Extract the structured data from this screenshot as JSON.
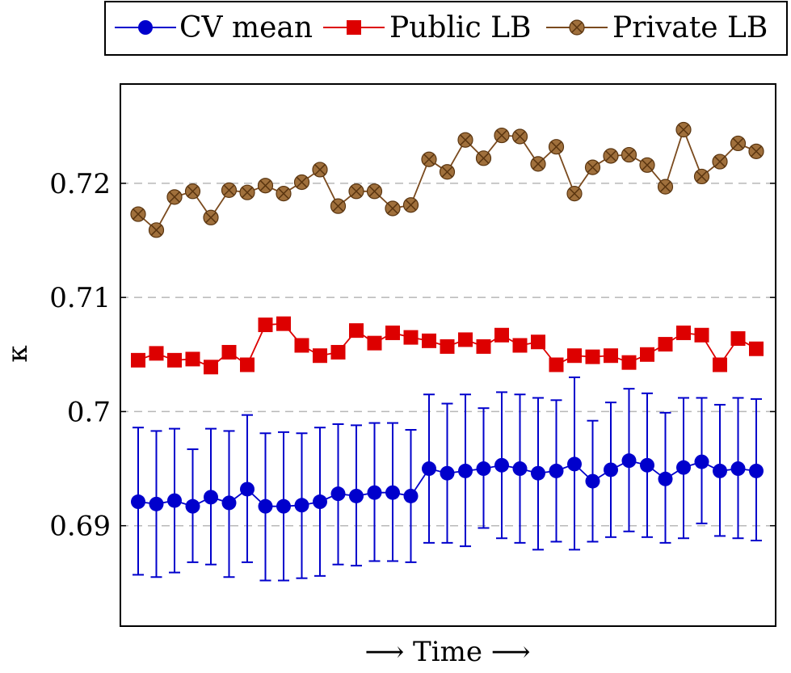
{
  "chart_data": {
    "type": "line",
    "xlabel": "⟶ Time ⟶",
    "ylabel": "κ",
    "ylim": [
      0.6812,
      0.7287
    ],
    "yticks": [
      0.69,
      0.7,
      0.71,
      0.72
    ],
    "ytick_labels": [
      "0.69",
      "0.7",
      "0.71",
      "0.72"
    ],
    "grid": "horizontal dashed",
    "legend_position": "top",
    "x": [
      1,
      2,
      3,
      4,
      5,
      6,
      7,
      8,
      9,
      10,
      11,
      12,
      13,
      14,
      15,
      16,
      17,
      18,
      19,
      20,
      21,
      22,
      23,
      24,
      25,
      26,
      27,
      28,
      29,
      30,
      31,
      32,
      33,
      34,
      35
    ],
    "series": [
      {
        "name": "CV mean",
        "color": "#0000cc",
        "marker": "circle",
        "values": [
          0.6921,
          0.6919,
          0.6922,
          0.6917,
          0.6925,
          0.692,
          0.6932,
          0.6917,
          0.6917,
          0.6918,
          0.6921,
          0.6928,
          0.6926,
          0.6929,
          0.6929,
          0.6926,
          0.695,
          0.6946,
          0.6948,
          0.695,
          0.6953,
          0.695,
          0.6946,
          0.6948,
          0.6954,
          0.6939,
          0.6949,
          0.6957,
          0.6953,
          0.6941,
          0.6951,
          0.6956,
          0.6948,
          0.695,
          0.6948
        ],
        "err_low": [
          0.6857,
          0.6855,
          0.6859,
          0.6868,
          0.6866,
          0.6855,
          0.6868,
          0.6852,
          0.6852,
          0.6854,
          0.6856,
          0.6866,
          0.6865,
          0.6869,
          0.6869,
          0.6868,
          0.6885,
          0.6885,
          0.6882,
          0.6898,
          0.6889,
          0.6885,
          0.6879,
          0.6886,
          0.6879,
          0.6886,
          0.689,
          0.6895,
          0.689,
          0.6885,
          0.6889,
          0.6902,
          0.6891,
          0.6889,
          0.6887
        ],
        "err_high": [
          0.6986,
          0.6983,
          0.6985,
          0.6967,
          0.6985,
          0.6983,
          0.6997,
          0.6981,
          0.6982,
          0.6981,
          0.6986,
          0.6989,
          0.6988,
          0.699,
          0.699,
          0.6984,
          0.7015,
          0.7007,
          0.7015,
          0.7003,
          0.7017,
          0.7015,
          0.7012,
          0.701,
          0.703,
          0.6992,
          0.7008,
          0.702,
          0.7016,
          0.6999,
          0.7012,
          0.7012,
          0.7006,
          0.7012,
          0.7011
        ]
      },
      {
        "name": "Public LB",
        "color": "#dd0000",
        "marker": "square",
        "values": [
          0.7045,
          0.7051,
          0.7045,
          0.7046,
          0.7039,
          0.7052,
          0.7041,
          0.7076,
          0.7077,
          0.7058,
          0.7049,
          0.7052,
          0.7071,
          0.706,
          0.7069,
          0.7065,
          0.7062,
          0.7057,
          0.7063,
          0.7057,
          0.7067,
          0.7058,
          0.7061,
          0.7041,
          0.7049,
          0.7048,
          0.7049,
          0.7043,
          0.705,
          0.7059,
          0.7069,
          0.7067,
          0.7041,
          0.7064,
          0.7055
        ]
      },
      {
        "name": "Private LB",
        "color": "#7a4a1e",
        "marker": "crossed-circle",
        "values": [
          0.7173,
          0.7159,
          0.7188,
          0.7193,
          0.717,
          0.7194,
          0.7192,
          0.7198,
          0.7191,
          0.7201,
          0.7212,
          0.718,
          0.7193,
          0.7193,
          0.7178,
          0.7181,
          0.7221,
          0.721,
          0.7238,
          0.7222,
          0.7242,
          0.7241,
          0.7217,
          0.7232,
          0.7191,
          0.7214,
          0.7224,
          0.7225,
          0.7216,
          0.7197,
          0.7247,
          0.7206,
          0.7219,
          0.7235,
          0.7228
        ]
      }
    ]
  }
}
